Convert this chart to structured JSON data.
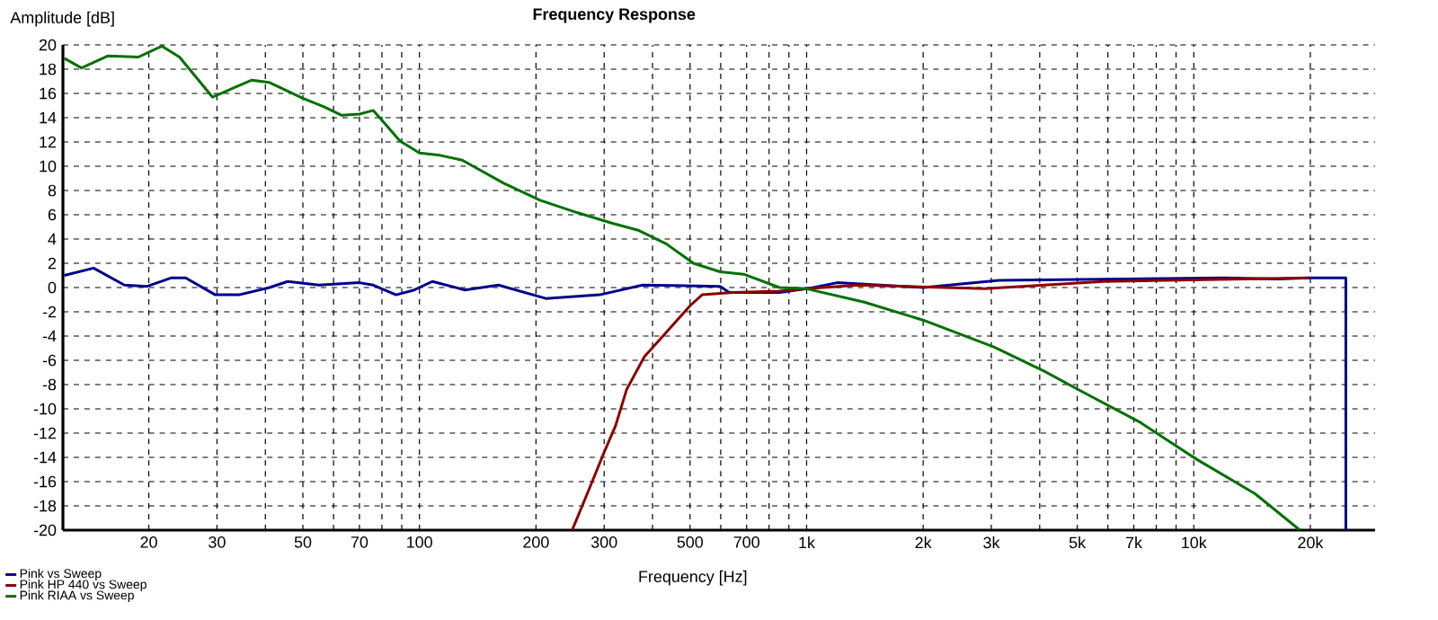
{
  "chart_data": {
    "type": "line",
    "title": "Frequency Response",
    "xlabel": "Frequency [Hz]",
    "ylabel": "Amplitude [dB]",
    "log": "x",
    "grid": true,
    "legend": "bottom left",
    "marker": "none",
    "line_style": "solid",
    "xlim": [
      12,
      29400
    ],
    "ylim": [
      -20,
      20
    ],
    "xticks": [
      20,
      30,
      {
        "value": 40,
        "label": null
      },
      50,
      {
        "value": 60,
        "label": null
      },
      70,
      {
        "value": 80,
        "label": null
      },
      {
        "value": 90,
        "label": null
      },
      100,
      200,
      300,
      {
        "value": 400,
        "label": null
      },
      500,
      {
        "value": 600,
        "label": null
      },
      700,
      {
        "value": 800,
        "label": null
      },
      {
        "value": 900,
        "label": null
      },
      {
        "value": 1000,
        "label": "1k"
      },
      {
        "value": 2000,
        "label": "2k"
      },
      {
        "value": 3000,
        "label": "3k"
      },
      {
        "value": 4000,
        "label": null
      },
      {
        "value": 5000,
        "label": "5k"
      },
      {
        "value": 6000,
        "label": null
      },
      {
        "value": 7000,
        "label": "7k"
      },
      {
        "value": 8000,
        "label": null
      },
      {
        "value": 9000,
        "label": null
      },
      {
        "value": 10000,
        "label": "10k"
      },
      {
        "value": 20000,
        "label": "20k"
      }
    ],
    "yticks": [
      -20,
      -18,
      -16,
      -14,
      -12,
      -10,
      -8,
      -6,
      -4,
      -2,
      0,
      2,
      4,
      6,
      8,
      10,
      12,
      14,
      16,
      18,
      20
    ],
    "series": [
      {
        "name": "Pink vs Sweep",
        "color": "#00008b",
        "x": [
          12.1,
          14.4,
          17.3,
          19.8,
          22.9,
          24.9,
          29.7,
          34.2,
          41,
          45.7,
          55,
          70,
          76,
          87,
          97,
          108,
          131,
          160,
          212,
          292,
          377,
          598,
          631,
          851,
          1000,
          1200,
          2005,
          3140,
          12000,
          16500,
          19800,
          24700,
          24700
        ],
        "values": [
          1.0,
          1.6,
          0.2,
          0.1,
          0.8,
          0.8,
          -0.6,
          -0.6,
          0.0,
          0.5,
          0.2,
          0.4,
          0.2,
          -0.6,
          -0.2,
          0.5,
          -0.2,
          0.2,
          -0.9,
          -0.6,
          0.2,
          0.1,
          -0.4,
          -0.4,
          -0.1,
          0.4,
          0.0,
          0.6,
          0.8,
          0.7,
          0.8,
          0.8,
          -20
        ]
      },
      {
        "name": "Pink HP 440 vs Sweep",
        "color": "#8b0000",
        "x": [
          248,
          277,
          298,
          321,
          343,
          381,
          420,
          500,
          537,
          645,
          851,
          1000,
          1364,
          2890,
          5850,
          19800
        ],
        "values": [
          -20,
          -16.3,
          -13.8,
          -11.4,
          -8.4,
          -5.7,
          -4.2,
          -1.5,
          -0.6,
          -0.4,
          -0.3,
          -0.1,
          0.2,
          -0.1,
          0.5,
          0.8
        ]
      },
      {
        "name": "Pink RIAA vs Sweep",
        "color": "#007000",
        "x": [
          12.1,
          13.4,
          15.7,
          18.8,
          21.6,
          24.0,
          29.2,
          36.9,
          41,
          50,
          56.7,
          63,
          70,
          76,
          80,
          89,
          100,
          113,
          129,
          165,
          205,
          254,
          315,
          369,
          434,
          510,
          598,
          688,
          851,
          1000,
          1409,
          2005,
          3045,
          4110,
          5090,
          7260,
          10100,
          14400,
          18800
        ],
        "values": [
          18.9,
          18.1,
          19.1,
          19.0,
          19.9,
          19.0,
          15.7,
          17.1,
          16.9,
          15.6,
          14.9,
          14.2,
          14.3,
          14.6,
          13.8,
          12.1,
          11.1,
          10.9,
          10.5,
          8.6,
          7.2,
          6.2,
          5.3,
          4.7,
          3.6,
          2.0,
          1.3,
          1.1,
          0.0,
          -0.1,
          -1.2,
          -2.7,
          -4.9,
          -6.9,
          -8.5,
          -11.1,
          -14.1,
          -17.0,
          -20
        ]
      }
    ]
  }
}
